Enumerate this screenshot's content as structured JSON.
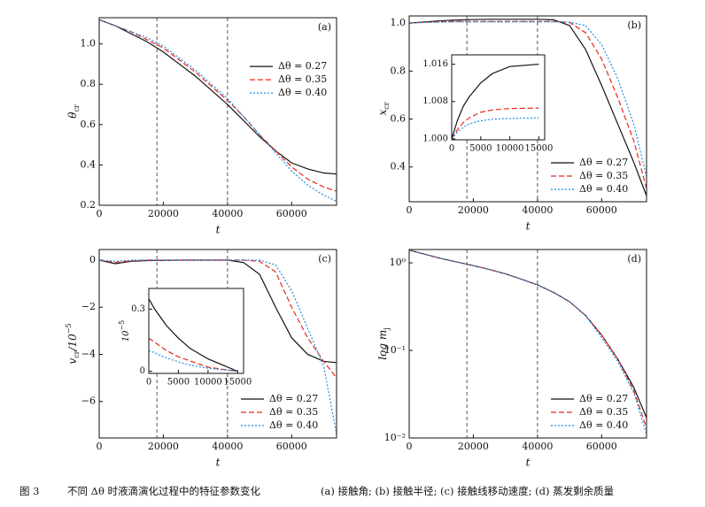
{
  "chart_data": [
    {
      "type": "line",
      "panel_label": "(a)",
      "xlabel": "t",
      "ylabel": [
        {
          "t": "θ"
        },
        {
          "t": "cr",
          "s": "sub"
        }
      ],
      "x": [
        0,
        5000,
        10000,
        15000,
        20000,
        25000,
        30000,
        35000,
        40000,
        45000,
        50000,
        55000,
        60000,
        65000,
        70000,
        74000
      ],
      "series": [
        {
          "name": "Δθ = 0.27",
          "color": "#111111",
          "dash": "solid",
          "values": [
            1.12,
            1.09,
            1.05,
            1.01,
            0.96,
            0.9,
            0.84,
            0.77,
            0.7,
            0.62,
            0.54,
            0.47,
            0.41,
            0.38,
            0.36,
            0.355
          ]
        },
        {
          "name": "Δθ = 0.35",
          "color": "#e8281e",
          "dash": "dashed",
          "values": [
            1.12,
            1.09,
            1.06,
            1.02,
            0.98,
            0.92,
            0.86,
            0.79,
            0.72,
            0.64,
            0.55,
            0.47,
            0.39,
            0.33,
            0.29,
            0.27
          ]
        },
        {
          "name": "Δθ = 0.40",
          "color": "#1a8fe6",
          "dash": "dotted",
          "values": [
            1.12,
            1.09,
            1.06,
            1.03,
            0.99,
            0.93,
            0.87,
            0.8,
            0.73,
            0.64,
            0.55,
            0.46,
            0.37,
            0.3,
            0.25,
            0.22
          ]
        }
      ],
      "xlim": [
        0,
        74000
      ],
      "ylim": [
        0.2,
        1.13
      ],
      "xticks": [
        0,
        20000,
        40000,
        60000
      ],
      "yticks": [
        0.2,
        0.4,
        0.6,
        0.8,
        {
          "value": 1,
          "label": "1.0"
        }
      ],
      "vlines": [
        18000,
        40000
      ],
      "legend": "center right"
    },
    {
      "type": "line",
      "panel_label": "(b)",
      "xlabel": "t",
      "ylabel": [
        {
          "t": "x"
        },
        {
          "t": "cr",
          "s": "sub"
        }
      ],
      "x": [
        0,
        5000,
        10000,
        15000,
        20000,
        25000,
        30000,
        35000,
        40000,
        45000,
        50000,
        55000,
        60000,
        65000,
        70000,
        74000
      ],
      "series": [
        {
          "name": "Δθ = 0.27",
          "color": "#111111",
          "dash": "solid",
          "values": [
            1.0,
            1.005,
            1.01,
            1.013,
            1.015,
            1.016,
            1.016,
            1.016,
            1.016,
            1.014,
            0.99,
            0.89,
            0.74,
            0.58,
            0.42,
            0.28
          ]
        },
        {
          "name": "Δθ = 0.35",
          "color": "#e8281e",
          "dash": "dashed",
          "values": [
            1.0,
            1.004,
            1.006,
            1.007,
            1.007,
            1.007,
            1.007,
            1.007,
            1.007,
            1.007,
            1.003,
            0.96,
            0.85,
            0.69,
            0.51,
            0.31
          ]
        },
        {
          "name": "Δθ = 0.40",
          "color": "#1a8fe6",
          "dash": "dotted",
          "values": [
            1.0,
            1.003,
            1.004,
            1.005,
            1.005,
            1.005,
            1.005,
            1.005,
            1.005,
            1.005,
            1.004,
            0.99,
            0.91,
            0.77,
            0.58,
            0.36
          ]
        }
      ],
      "xlim": [
        0,
        74000
      ],
      "ylim": [
        0.255,
        1.03
      ],
      "xticks": [
        0,
        20000,
        40000,
        60000
      ],
      "yticks": [
        0.4,
        0.6,
        0.8,
        {
          "value": 1,
          "label": "1.0"
        }
      ],
      "vlines": [
        18000,
        40000
      ],
      "legend": "lower right",
      "inset": {
        "x": [
          0,
          1000,
          2000,
          3000,
          5000,
          7000,
          10000,
          15000
        ],
        "series": [
          {
            "color": "#111111",
            "dash": "solid",
            "values": [
              1.0,
              1.004,
              1.007,
              1.009,
              1.012,
              1.014,
              1.0155,
              1.016
            ]
          },
          {
            "color": "#e8281e",
            "dash": "dashed",
            "values": [
              1.0,
              1.002,
              1.0035,
              1.0045,
              1.0057,
              1.0062,
              1.0065,
              1.0066
            ]
          },
          {
            "color": "#1a8fe6",
            "dash": "dotted",
            "values": [
              1.0,
              1.0015,
              1.0025,
              1.0032,
              1.0039,
              1.0042,
              1.0044,
              1.0045
            ]
          }
        ],
        "xlim": [
          0,
          16000
        ],
        "ylim": [
          0.9998,
          1.018
        ],
        "xticks": [
          0,
          5000,
          10000,
          15000
        ],
        "yticks": [
          {
            "value": 1,
            "label": "1.000"
          },
          {
            "value": 1.008,
            "label": "1.008"
          },
          {
            "value": 1.016,
            "label": "1.016"
          }
        ]
      }
    },
    {
      "type": "line",
      "panel_label": "(c)",
      "xlabel": "t",
      "ylabel": [
        {
          "t": "v"
        },
        {
          "t": "cr",
          "s": "sub"
        },
        {
          "t": "/10"
        },
        {
          "t": "−5",
          "s": "sup"
        }
      ],
      "x": [
        0,
        5000,
        10000,
        15000,
        20000,
        25000,
        30000,
        35000,
        40000,
        45000,
        50000,
        55000,
        60000,
        65000,
        70000,
        74000
      ],
      "series": [
        {
          "name": "Δθ = 0.27",
          "color": "#111111",
          "dash": "solid",
          "values": [
            0,
            -0.15,
            -0.05,
            -0.02,
            -0.01,
            0,
            0,
            0,
            0,
            -0.1,
            -0.6,
            -2.0,
            -3.3,
            -4.0,
            -4.3,
            -4.35
          ]
        },
        {
          "name": "Δθ = 0.35",
          "color": "#e8281e",
          "dash": "dashed",
          "values": [
            0,
            -0.1,
            -0.03,
            0,
            0,
            0,
            0,
            0,
            0,
            0,
            -0.05,
            -0.5,
            -2.0,
            -3.3,
            -4.3,
            -5.0
          ]
        },
        {
          "name": "Δθ = 0.40",
          "color": "#1a8fe6",
          "dash": "dotted",
          "values": [
            0,
            -0.05,
            0,
            0,
            0,
            0,
            0,
            0,
            0,
            0,
            0,
            -0.2,
            -1.3,
            -2.9,
            -4.5,
            -7.4
          ]
        }
      ],
      "xlim": [
        0,
        74000
      ],
      "ylim": [
        -7.55,
        0.45
      ],
      "xticks": [
        0,
        20000,
        40000,
        60000
      ],
      "yticks": [
        0,
        {
          "value": -2,
          "label": "−2"
        },
        {
          "value": -4,
          "label": "−4"
        },
        {
          "value": -6,
          "label": "−6"
        }
      ],
      "vlines": [
        18000,
        40000
      ],
      "legend": "lower right",
      "inset": {
        "ylabel": [
          {
            "t": "10"
          },
          {
            "t": "−5",
            "s": "sup"
          }
        ],
        "x": [
          0,
          1000,
          2000,
          3000,
          5000,
          7000,
          10000,
          15000
        ],
        "series": [
          {
            "color": "#111111",
            "dash": "solid",
            "values": [
              0.35,
              0.3,
              0.26,
              0.22,
              0.16,
              0.11,
              0.06,
              0.0
            ]
          },
          {
            "color": "#e8281e",
            "dash": "dashed",
            "values": [
              0.16,
              0.14,
              0.12,
              0.1,
              0.07,
              0.05,
              0.02,
              0.0
            ]
          },
          {
            "color": "#1a8fe6",
            "dash": "dotted",
            "values": [
              0.1,
              0.09,
              0.075,
              0.065,
              0.045,
              0.03,
              0.015,
              0.0
            ]
          }
        ],
        "xlim": [
          0,
          16000
        ],
        "ylim": [
          -0.01,
          0.4
        ],
        "xticks": [
          0,
          5000,
          10000,
          15000
        ],
        "yticks": [
          0,
          0.3
        ]
      }
    },
    {
      "type": "line",
      "panel_label": "(d)",
      "xlabel": "t",
      "log_y": true,
      "ylabel": [
        {
          "t": "log m"
        },
        {
          "t": "j",
          "s": "sub"
        }
      ],
      "x": [
        0,
        5000,
        10000,
        15000,
        20000,
        25000,
        30000,
        35000,
        40000,
        45000,
        50000,
        55000,
        60000,
        65000,
        70000,
        74000
      ],
      "series": [
        {
          "name": "Δθ = 0.27",
          "color": "#111111",
          "dash": "solid",
          "values": [
            1.4,
            1.25,
            1.12,
            1.02,
            0.93,
            0.84,
            0.75,
            0.65,
            0.56,
            0.46,
            0.36,
            0.25,
            0.15,
            0.08,
            0.038,
            0.017
          ]
        },
        {
          "name": "Δθ = 0.35",
          "color": "#e8281e",
          "dash": "dashed",
          "values": [
            1.4,
            1.25,
            1.12,
            1.02,
            0.93,
            0.84,
            0.75,
            0.65,
            0.56,
            0.46,
            0.36,
            0.25,
            0.15,
            0.08,
            0.035,
            0.013
          ]
        },
        {
          "name": "Δθ = 0.40",
          "color": "#1a8fe6",
          "dash": "dotted",
          "values": [
            1.4,
            1.25,
            1.12,
            1.02,
            0.93,
            0.84,
            0.75,
            0.65,
            0.56,
            0.46,
            0.36,
            0.25,
            0.14,
            0.075,
            0.033,
            0.011
          ]
        }
      ],
      "xlim": [
        0,
        74000
      ],
      "ylim": [
        0.01,
        1.42
      ],
      "xticks": [
        0,
        20000,
        40000,
        60000
      ],
      "yticks": [
        {
          "value": 1,
          "label": "10⁰"
        },
        {
          "value": 0.1,
          "label": "10⁻¹"
        },
        {
          "value": 0.01,
          "label": "10⁻²"
        }
      ],
      "vlines": [
        18000,
        40000
      ],
      "legend": "lower right"
    }
  ],
  "caption": [
    "图 3",
    "不同 Δθ 时液滴演化过程中的特征参数变化",
    "(a) 接触角; (b) 接触半径; (c) 接触线移动速度; (d) 蒸发剩余质量"
  ]
}
